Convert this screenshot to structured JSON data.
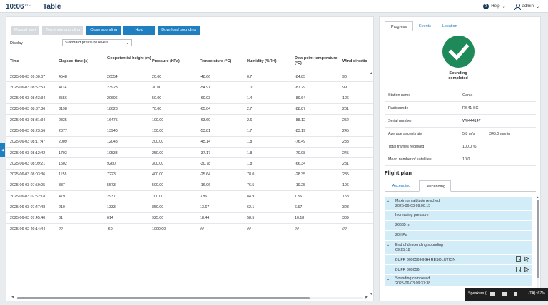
{
  "header": {
    "time": "10:06",
    "tz": "UTC",
    "title": "Table",
    "help_label": "Help",
    "user_label": "admin"
  },
  "toolbar": {
    "manual_start": "Manual start",
    "terminate": "Terminate sounding",
    "close": "Close sounding",
    "hold": "Hold",
    "download": "Download sounding"
  },
  "display": {
    "label": "Display",
    "value": "Standard pressure levels"
  },
  "table": {
    "headers": [
      "Time",
      "Elapsed time (s)",
      "Geopotential height (m)",
      "Pressure (hPa)",
      "Temperature (°C)",
      "Humidity (%RH)",
      "Dew point temperature (°C)",
      "Wind directio"
    ],
    "rows": [
      [
        "2025-06-03 09:00:07",
        "4548",
        "26554",
        "20.00",
        "-48.66",
        "0.7",
        "-84.85",
        "90"
      ],
      [
        "2025-06-03 08:52:53",
        "4114",
        "23928",
        "30.00",
        "-54.91",
        "1.0",
        "-87.29",
        "99"
      ],
      [
        "2025-06-03 08:43:34",
        "3556",
        "20696",
        "50.00",
        "-60.93",
        "1.4",
        "-89.64",
        "126"
      ],
      [
        "2025-06-03 08:37:36",
        "3198",
        "18628",
        "70.00",
        "-65.04",
        "2.7",
        "-88.87",
        "201"
      ],
      [
        "2025-06-03 08:31:34",
        "2835",
        "16475",
        "100.00",
        "-63.60",
        "2.6",
        "-88.12",
        "252"
      ],
      [
        "2025-06-03 08:23:56",
        "2377",
        "13940",
        "150.00",
        "-53.81",
        "1.7",
        "-83.19",
        "245"
      ],
      [
        "2025-06-03 08:17:47",
        "2009",
        "12048",
        "200.00",
        "-45.14",
        "1.8",
        "-76.49",
        "238"
      ],
      [
        "2025-06-03 08:12:42",
        "1703",
        "10533",
        "250.00",
        "-37.17",
        "1.8",
        "-70.98",
        "245"
      ],
      [
        "2025-06-03 08:09:21",
        "1502",
        "9260",
        "300.00",
        "-30.78",
        "1.8",
        "-66.34",
        "231"
      ],
      [
        "2025-06-03 08:03:36",
        "1158",
        "7223",
        "400.00",
        "-25.64",
        "78.0",
        "-28.35",
        "235"
      ],
      [
        "2025-06-03 07:59:05",
        "887",
        "5573",
        "500.00",
        "-16.06",
        "76.5",
        "-19.25",
        "196"
      ],
      [
        "2025-06-03 07:52:18",
        "479",
        "2937",
        "700.00",
        "3.86",
        "84.9",
        "1.56",
        "158"
      ],
      [
        "2025-06-03 07:47:48",
        "210",
        "1333",
        "850.00",
        "13.67",
        "62.1",
        "6.57",
        "328"
      ],
      [
        "2025-06-03 07:45:40",
        "81",
        "614",
        "925.00",
        "18.44",
        "58.5",
        "10.18",
        "309"
      ],
      [
        "2025-06-02 20:14:44",
        "////",
        "-60",
        "1000.00",
        "////",
        "////",
        "////",
        "////"
      ]
    ]
  },
  "right": {
    "tabs": [
      "Progress",
      "Events",
      "Location"
    ],
    "status_line1": "Sounding",
    "status_line2": "completed",
    "props": [
      {
        "k": "Station name",
        "v": "Ganja"
      },
      {
        "k": "Radiosonde",
        "v": "RS41-SG"
      },
      {
        "k": "Serial number",
        "v": "W0444147"
      },
      {
        "k": "Average ascent rate",
        "v": "5.8 m/s",
        "v2": "346.0 m/min"
      },
      {
        "k": "Total frames received",
        "v": "100.0 %"
      },
      {
        "k": "Mean number of satellites",
        "v": "10.0"
      }
    ],
    "flight_plan_title": "Flight plan",
    "fp_tabs": [
      "Ascending",
      "Descending"
    ],
    "fp_items": {
      "max_alt_title": "Maximum altitude reached",
      "max_alt_time": "2025-06-03 09:00:15",
      "increasing_pressure": "Increasing pressure",
      "altitude": "26635 m",
      "pressure": "20 hPa",
      "end_desc_title": "End of descending sounding",
      "end_desc_time": "09:25:18",
      "bufr_high": "BUFR 309056 HIGH RESOLUTION",
      "bufr": "BUFR 309056",
      "completed_title": "Sounding completed",
      "completed_time": "2025-06-03 09:37:38"
    }
  },
  "tray": {
    "label": "Speakers (",
    "pct": "(TA): 67%"
  },
  "colors": {
    "primary": "#1f7fc0",
    "success": "#1e8a5a",
    "highlight": "#d2ecf8",
    "title": "#1b3a5c"
  }
}
